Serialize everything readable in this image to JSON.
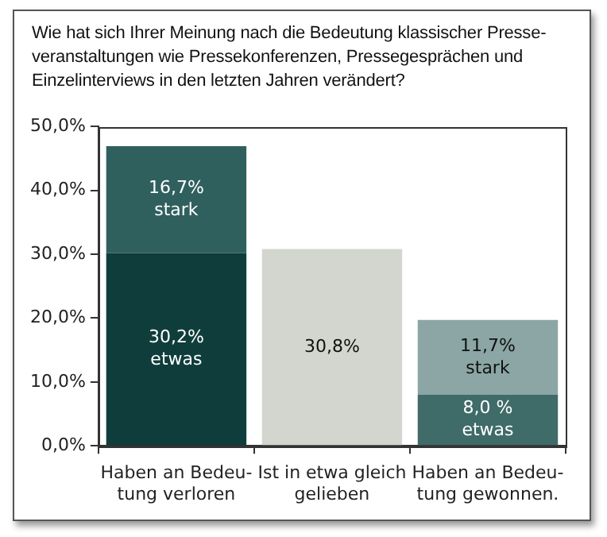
{
  "chart_data": {
    "type": "bar",
    "stacked": true,
    "title": "Wie hat sich Ihrer Meinung nach die Bedeutung klassischer Presse-\nveranstaltungen wie Pressekonferenzen, Pressegesprächen und\nEinzelinterviews in den letzten Jahren verändert?",
    "categories": [
      "Haben an Bedeu-\ntung verloren",
      "Ist in etwa gleich\ngelieben",
      "Haben an Bedeu-\ntung gewonnen."
    ],
    "series": [
      {
        "colors": [
          "#0f3d3c",
          "#d3d5cf",
          "#3f6b69"
        ],
        "values": [
          30.2,
          30.8,
          8.0
        ],
        "value_labels": [
          "30,2%\netwas",
          "30,8%",
          "8,0 %\netwas"
        ]
      },
      {
        "colors": [
          "#2f605e",
          "#d3d5cf",
          "#8ba6a4"
        ],
        "values": [
          16.7,
          null,
          11.7
        ],
        "value_labels": [
          "16,7%\nstark",
          null,
          "11,7%\nstark"
        ]
      }
    ],
    "ylim": [
      0,
      50
    ],
    "yticks": [
      {
        "value": 0,
        "label": "0,0%"
      },
      {
        "value": 10,
        "label": "10,0%"
      },
      {
        "value": 20,
        "label": "20,0%"
      },
      {
        "value": 30,
        "label": "30,0%"
      },
      {
        "value": 40,
        "label": "40,0%"
      },
      {
        "value": 50,
        "label": "50,0%"
      }
    ],
    "grid": false,
    "legend": false
  }
}
